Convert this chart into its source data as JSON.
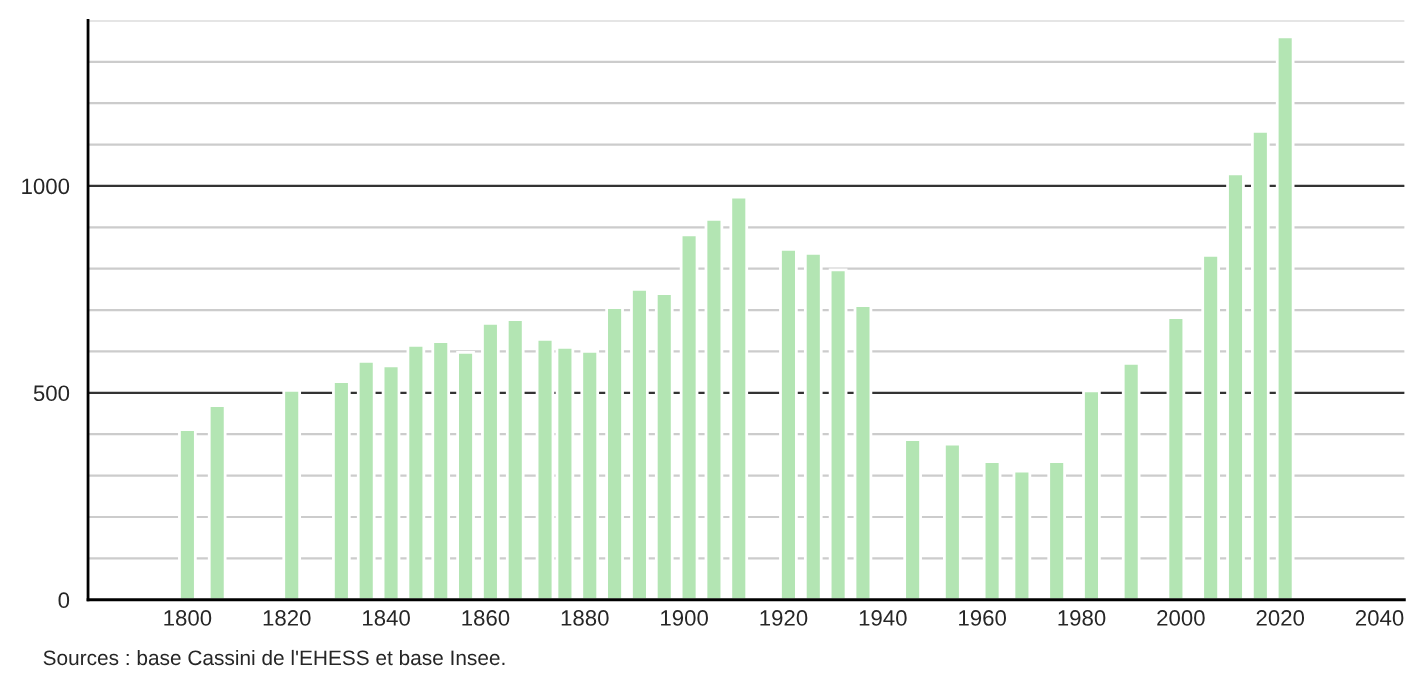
{
  "chart_data": {
    "type": "bar",
    "x": [
      1800,
      1806,
      1821,
      1831,
      1836,
      1841,
      1846,
      1851,
      1856,
      1861,
      1866,
      1872,
      1876,
      1881,
      1886,
      1891,
      1896,
      1901,
      1906,
      1911,
      1921,
      1926,
      1931,
      1936,
      1946,
      1954,
      1962,
      1968,
      1975,
      1982,
      1990,
      1999,
      2006,
      2011,
      2016,
      2021
    ],
    "values": [
      411,
      469,
      506,
      527,
      576,
      565,
      615,
      624,
      598,
      668,
      677,
      629,
      610,
      600,
      706,
      750,
      740,
      882,
      919,
      973,
      847,
      837,
      797,
      711,
      387,
      376,
      334,
      311,
      334,
      505,
      571,
      682,
      832,
      1029,
      1132,
      1360
    ],
    "color": "#b3e5b3",
    "xlim": [
      1780,
      2045
    ],
    "xticks": [
      1800,
      1820,
      1840,
      1860,
      1880,
      1900,
      1920,
      1940,
      1960,
      1980,
      2000,
      2020,
      2040
    ],
    "ylim": [
      0,
      1400
    ],
    "yticks": [
      0,
      {
        "value": 100,
        "label": null
      },
      {
        "value": 200,
        "label": null
      },
      {
        "value": 300,
        "label": null
      },
      {
        "value": 400,
        "label": null
      },
      500,
      {
        "value": 600,
        "label": null
      },
      {
        "value": 700,
        "label": null
      },
      {
        "value": 800,
        "label": null
      },
      {
        "value": 900,
        "label": null
      },
      1000,
      {
        "value": 1100,
        "label": null
      },
      {
        "value": 1200,
        "label": null
      },
      {
        "value": 1300,
        "label": null
      },
      {
        "value": 1400,
        "label": null
      }
    ],
    "grid": "y",
    "annotations": [
      "Sources : base Cassini de l'EHESS et base Insee."
    ]
  }
}
